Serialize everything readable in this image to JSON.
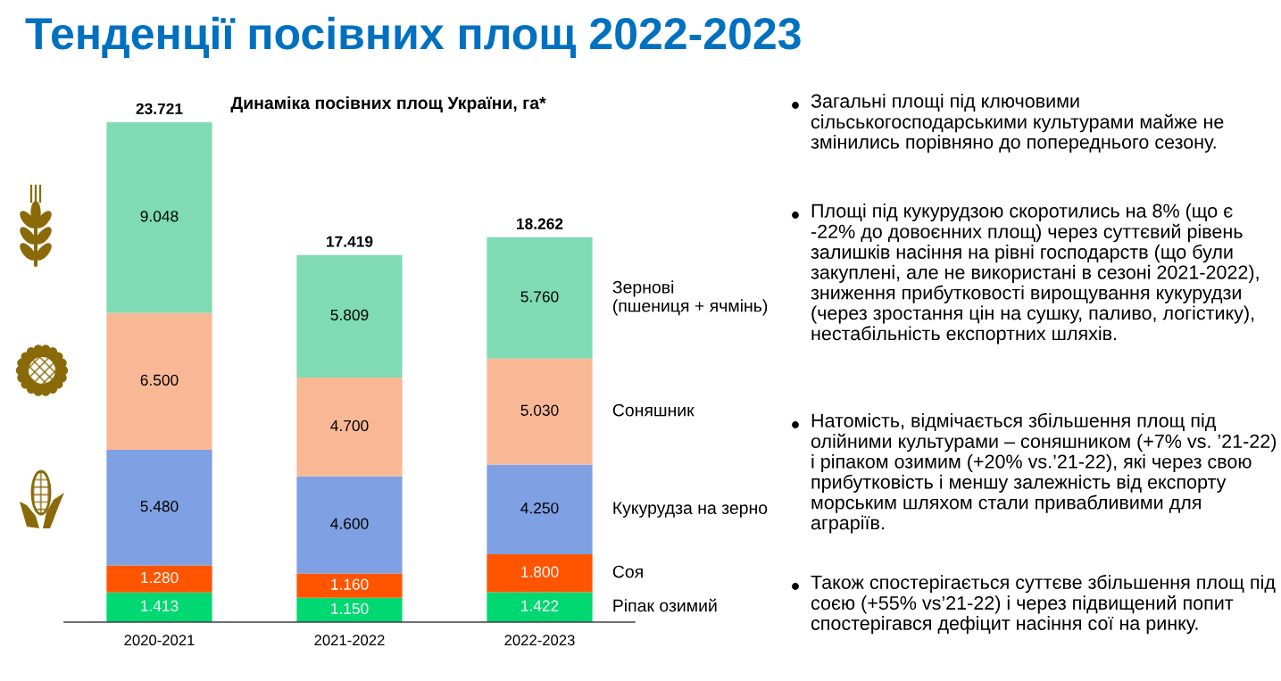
{
  "chart_data": {
    "type": "bar",
    "title": "Тенденції посівних площ 2022-2023",
    "subtitle": "Динаміка посівних площ України, га*",
    "categories": [
      "2020-2021",
      "2021-2022",
      "2022-2023"
    ],
    "stacked": true,
    "series": [
      {
        "name": "Ріпак озимий",
        "color": "#00d872",
        "values": [
          1.413,
          1.15,
          1.422
        ],
        "value_labels": [
          "1.413",
          "1.150",
          "1.422"
        ]
      },
      {
        "name": "Соя",
        "color": "#ff5500",
        "values": [
          1.28,
          1.16,
          1.8
        ],
        "value_labels": [
          "1.280",
          "1.160",
          "1.800"
        ]
      },
      {
        "name": "Кукурудза на зерно",
        "color": "#7fa0e3",
        "values": [
          5.48,
          4.6,
          4.25
        ],
        "value_labels": [
          "5.480",
          "4.600",
          "4.250"
        ]
      },
      {
        "name": "Соняшник",
        "color": "#f9b895",
        "values": [
          6.5,
          4.7,
          5.03
        ],
        "value_labels": [
          "6.500",
          "4.700",
          "5.030"
        ]
      },
      {
        "name": "Зернові\n(пшениця + ячмінь)",
        "color": "#7fdbb4",
        "values": [
          9.048,
          5.809,
          5.76
        ],
        "value_labels": [
          "9.048",
          "5.809",
          "5.760"
        ]
      }
    ],
    "totals": [
      "23.721",
      "17.419",
      "18.262"
    ],
    "annotations": [
      "Загальні площі під ключовими сільськогосподарськими культурами майже не змінились порівняно до попереднього сезону.",
      "Площі під кукурудзою скоротились на 8% (що є -22% до довоєнних площ) через суттєвий рівень залишків насіння на рівні господарств (що були закуплені, але не використані в сезоні 2021-2022), зниження прибутковості вирощування кукурудзи (через зростання цін на сушку, паливо, логістику), нестабільність експортних шляхів.",
      "Натомість, відмічається збільшення площ під олійними культурами – соняшником (+7% vs. ’21-22) і ріпаком озимим (+20% vs.’21-22), які через свою прибутковість і меншу залежність від експорту морським шляхом стали привабливими для аграріїв.",
      "Також спостерігається суттєве збільшення площ під соєю (+55% vs’21-22) і через підвищений попит спостерігався дефіцит насіння сої на ринку."
    ]
  }
}
